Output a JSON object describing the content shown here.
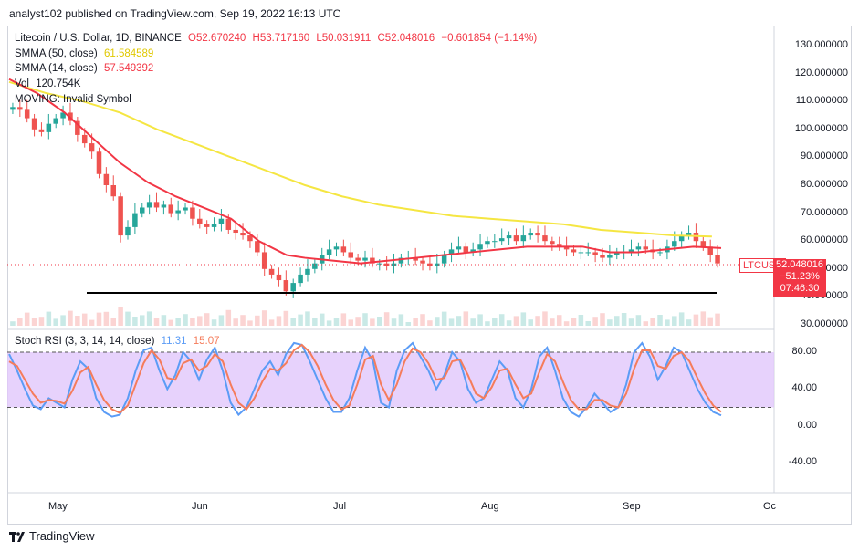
{
  "header": {
    "published_by": "analyst102 published on TradingView.com, Sep 19, 2022 16:13 UTC"
  },
  "legend": {
    "symbol": "Litecoin / U.S. Dollar, 1D, BINANCE",
    "open": "O52.670240",
    "high": "H53.717160",
    "low": "L50.031911",
    "close": "C52.048016",
    "change": "−0.601854 (−1.14%)",
    "smma50_label": "SMMA (50, close)",
    "smma50_value": "61.584589",
    "smma14_label": "SMMA (14, close)",
    "smma14_value": "57.549392",
    "vol_label": "Vol",
    "vol_value": "120.754K",
    "moving_label": "MOVING: Invalid Symbol",
    "stoch_label": "Stoch RSI (3, 3, 14, 14, close)",
    "stoch_k": "11.31",
    "stoch_d": "15.07"
  },
  "price_tag": {
    "price": "52.048016",
    "change_pct": "−51.23%",
    "countdown": "07:46:30",
    "ticker": "LTCUSD"
  },
  "colors": {
    "up": "#26a69a",
    "down": "#ef5350",
    "smma50": "#f5e642",
    "smma14": "#f23645",
    "stoch_k": "#5b9cf6",
    "stoch_d": "#f57c5b",
    "rsi_band": "#e1c7fb"
  },
  "footer": {
    "brand": "TradingView"
  },
  "chart_data": [
    {
      "type": "candlestick",
      "title": "Litecoin / U.S. Dollar, 1D, BINANCE",
      "x_labels": [
        "May",
        "Jun",
        "Jul",
        "Aug",
        "Sep",
        "Oc"
      ],
      "y_ticks": [
        "130.000000",
        "120.000000",
        "110.000000",
        "100.000000",
        "90.000000",
        "80.000000",
        "70.000000",
        "60.000000",
        "50.000000",
        "40.000000",
        "30.000000"
      ],
      "ylim": [
        30,
        135
      ],
      "support_level": 41,
      "series": [
        {
          "name": "SMMA (50, close)",
          "values": [
            [
              0,
              117
            ],
            [
              40,
              113
            ],
            [
              80,
              110
            ],
            [
              120,
              106
            ],
            [
              160,
              100
            ],
            [
              200,
              95
            ],
            [
              240,
              90
            ],
            [
              280,
              85
            ],
            [
              320,
              80
            ],
            [
              360,
              76
            ],
            [
              400,
              73
            ],
            [
              440,
              71
            ],
            [
              480,
              69
            ],
            [
              520,
              68
            ],
            [
              560,
              67
            ],
            [
              600,
              66
            ],
            [
              640,
              64
            ],
            [
              680,
              63
            ],
            [
              720,
              62
            ],
            [
              760,
              61.6
            ]
          ]
        },
        {
          "name": "SMMA (14, close)",
          "values": [
            [
              0,
              118
            ],
            [
              30,
              113
            ],
            [
              60,
              106
            ],
            [
              90,
              97
            ],
            [
              120,
              88
            ],
            [
              150,
              81
            ],
            [
              180,
              76
            ],
            [
              210,
              72
            ],
            [
              240,
              68
            ],
            [
              270,
              60
            ],
            [
              300,
              55
            ],
            [
              320,
              54
            ],
            [
              350,
              53
            ],
            [
              380,
              52
            ],
            [
              410,
              53
            ],
            [
              440,
              54
            ],
            [
              470,
              55
            ],
            [
              500,
              56
            ],
            [
              530,
              57
            ],
            [
              560,
              58
            ],
            [
              590,
              58
            ],
            [
              620,
              58
            ],
            [
              650,
              56
            ],
            [
              680,
              56
            ],
            [
              710,
              57
            ],
            [
              740,
              58
            ],
            [
              770,
              57.5
            ]
          ]
        }
      ],
      "candle_closes": [
        108,
        107,
        104,
        100,
        99,
        102,
        104,
        106,
        103,
        98,
        95,
        92,
        84,
        80,
        76,
        62,
        65,
        70,
        72,
        74,
        72,
        73,
        70,
        71,
        72,
        68,
        66,
        65,
        66,
        68,
        64,
        63,
        62,
        60,
        56,
        50,
        48,
        46,
        42,
        45,
        48,
        50,
        52,
        55,
        57,
        58,
        56,
        54,
        53,
        54,
        52,
        52,
        51,
        52,
        54,
        54,
        53,
        52,
        51,
        52,
        55,
        57,
        58,
        56,
        57,
        59,
        60,
        60,
        61,
        62,
        60,
        62,
        63,
        62,
        60,
        59,
        58,
        57,
        56,
        56,
        56,
        55,
        54,
        55,
        56,
        56,
        57,
        58,
        57,
        56,
        56,
        58,
        60,
        62,
        63,
        60,
        58,
        55,
        52
      ],
      "volume_note": "volume histogram shown beneath price"
    },
    {
      "type": "line",
      "title": "Stoch RSI (3, 3, 14, 14, close)",
      "y_ticks": [
        "80.00",
        "40.00",
        "0.00",
        "-40.00"
      ],
      "ylim": [
        -60,
        100
      ],
      "bands": [
        20,
        80
      ],
      "series": [
        {
          "name": "K",
          "values": [
            78,
            60,
            40,
            22,
            18,
            30,
            25,
            20,
            50,
            70,
            62,
            30,
            15,
            10,
            12,
            30,
            60,
            82,
            85,
            60,
            40,
            55,
            80,
            70,
            50,
            72,
            85,
            60,
            25,
            12,
            20,
            40,
            60,
            70,
            55,
            78,
            90,
            88,
            70,
            50,
            30,
            15,
            15,
            30,
            60,
            85,
            70,
            25,
            20,
            60,
            82,
            90,
            75,
            60,
            40,
            55,
            80,
            70,
            40,
            25,
            30,
            50,
            70,
            60,
            30,
            20,
            40,
            75,
            85,
            60,
            30,
            15,
            10,
            20,
            35,
            25,
            15,
            20,
            45,
            80,
            90,
            75,
            50,
            65,
            85,
            80,
            60,
            40,
            25,
            15,
            11.31
          ]
        },
        {
          "name": "D",
          "values": [
            70,
            65,
            50,
            35,
            25,
            28,
            27,
            24,
            38,
            58,
            64,
            45,
            28,
            18,
            14,
            22,
            45,
            68,
            82,
            72,
            52,
            50,
            68,
            72,
            60,
            65,
            78,
            70,
            45,
            25,
            18,
            30,
            48,
            62,
            60,
            68,
            82,
            88,
            80,
            65,
            45,
            28,
            18,
            22,
            45,
            72,
            76,
            45,
            28,
            45,
            70,
            84,
            80,
            68,
            50,
            52,
            70,
            72,
            55,
            35,
            30,
            42,
            60,
            62,
            45,
            30,
            35,
            58,
            78,
            70,
            48,
            28,
            18,
            18,
            28,
            28,
            22,
            20,
            35,
            62,
            82,
            82,
            65,
            62,
            76,
            80,
            70,
            52,
            35,
            22,
            15.07
          ]
        }
      ]
    }
  ]
}
